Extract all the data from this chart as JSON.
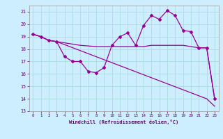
{
  "xlabel": "Windchill (Refroidissement éolien,°C)",
  "bg_color": "#cceeff",
  "grid_color": "#aadddd",
  "line_color": "#990099",
  "xlim": [
    -0.5,
    23.5
  ],
  "ylim": [
    13,
    21.5
  ],
  "yticks": [
    13,
    14,
    15,
    16,
    17,
    18,
    19,
    20,
    21
  ],
  "xticks": [
    0,
    1,
    2,
    3,
    4,
    5,
    6,
    7,
    8,
    9,
    10,
    11,
    12,
    13,
    14,
    15,
    16,
    17,
    18,
    19,
    20,
    21,
    22,
    23
  ],
  "series1_x": [
    0,
    1,
    2,
    3,
    4,
    5,
    6,
    7,
    8,
    9,
    10,
    11,
    12,
    13,
    14,
    15,
    16,
    17,
    18,
    19,
    20,
    21,
    22,
    23
  ],
  "series1_y": [
    19.2,
    19.0,
    18.7,
    18.6,
    17.4,
    17.0,
    17.0,
    16.2,
    16.1,
    16.5,
    18.3,
    19.0,
    19.3,
    18.3,
    19.9,
    20.7,
    20.4,
    21.1,
    20.7,
    19.5,
    19.4,
    18.1,
    18.1,
    14.0
  ],
  "series2_x": [
    0,
    1,
    2,
    3,
    22,
    23
  ],
  "series2_y": [
    19.2,
    19.0,
    18.7,
    18.6,
    14.0,
    13.4
  ],
  "series3_x": [
    0,
    1,
    2,
    3,
    4,
    5,
    6,
    7,
    8,
    9,
    10,
    11,
    12,
    13,
    14,
    15,
    16,
    17,
    18,
    19,
    20,
    21,
    22,
    23
  ],
  "series3_y": [
    19.2,
    19.0,
    18.7,
    18.6,
    18.5,
    18.4,
    18.3,
    18.25,
    18.2,
    18.2,
    18.2,
    18.2,
    18.2,
    18.2,
    18.2,
    18.3,
    18.3,
    18.3,
    18.3,
    18.3,
    18.2,
    18.1,
    18.1,
    14.0
  ]
}
